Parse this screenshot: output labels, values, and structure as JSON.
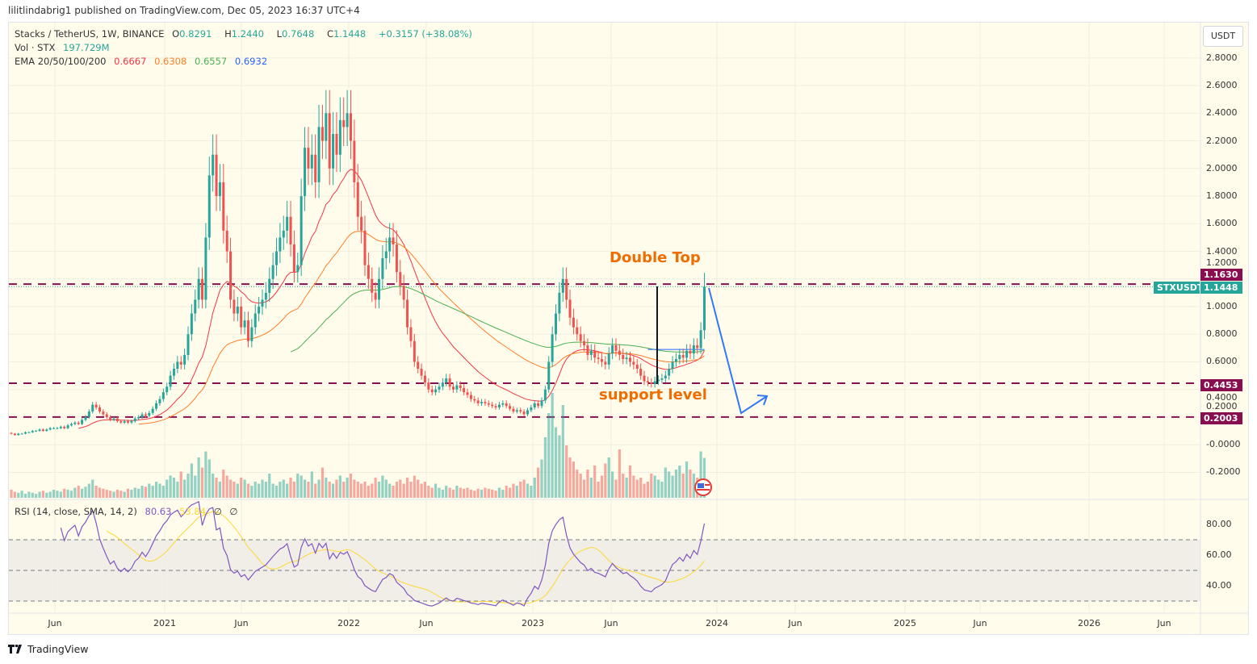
{
  "published": "lilitlindabrig1 published on TradingView.com, Dec 05, 2023 16:37 UTC+4",
  "legend": {
    "symbol": "Stacks / TetherUS, 1W, BINANCE",
    "open_label": "O",
    "open": "0.8291",
    "high_label": "H",
    "high": "1.2440",
    "low_label": "L",
    "low": "0.7648",
    "close_label": "C",
    "close": "1.1448",
    "change": "+0.3157 (+38.08%)",
    "vol_label": "Vol · STX",
    "vol": "197.729M",
    "ema_label": "EMA 20/50/100/200",
    "ema_values": [
      "0.6667",
      "0.6308",
      "0.6557",
      "0.6932"
    ]
  },
  "currency_button": "USDT",
  "price_axis": [
    "2.8000",
    "2.6000",
    "2.4000",
    "2.2000",
    "2.0000",
    "1.8000",
    "1.6000",
    "1.4000",
    "1.2000",
    "1.0000",
    "0.8000",
    "0.6000",
    "0.4000",
    "0.2000",
    "-0.0000",
    "-0.2000"
  ],
  "price_tags": {
    "double_top": "1.1630",
    "symbol": "STXUSDT",
    "last": "1.1448",
    "support": "0.4453",
    "lower": "0.2003"
  },
  "annotations": {
    "double_top": "Double Top",
    "support": "support level"
  },
  "rsi": {
    "label": "RSI (14, close, SMA, 14, 2)",
    "value": "80.63",
    "sma": "53.84",
    "extra1": "∅",
    "extra2": "∅",
    "axis": [
      "80.00",
      "60.00",
      "40.00"
    ]
  },
  "time_axis": [
    "Jun",
    "2021",
    "Jun",
    "2022",
    "Jun",
    "2023",
    "Jun",
    "2024",
    "Jun",
    "2025",
    "Jun",
    "2026",
    "Jun"
  ],
  "footer": "TradingView",
  "colors": {
    "up": "#26a69a",
    "down": "#ef5350",
    "ema20": "#f23645",
    "ema50": "#ff7f27",
    "ema100": "#4caf50",
    "ema200": "#2962ff",
    "levels": "#880e4f",
    "annotation": "#ef6c00",
    "arrow": "#3179f5",
    "rsi": "#7e57c2",
    "rsi_sma": "#fdd835"
  },
  "chart_data": {
    "type": "candlestick",
    "interval": "1W",
    "first_week": "2020-03",
    "close": [
      0.08,
      0.07,
      0.08,
      0.08,
      0.09,
      0.09,
      0.1,
      0.1,
      0.11,
      0.1,
      0.11,
      0.12,
      0.12,
      0.12,
      0.13,
      0.12,
      0.14,
      0.15,
      0.16,
      0.15,
      0.18,
      0.2,
      0.24,
      0.29,
      0.27,
      0.24,
      0.22,
      0.2,
      0.18,
      0.19,
      0.17,
      0.16,
      0.17,
      0.16,
      0.17,
      0.19,
      0.2,
      0.22,
      0.21,
      0.23,
      0.26,
      0.3,
      0.33,
      0.38,
      0.42,
      0.5,
      0.55,
      0.6,
      0.58,
      0.65,
      0.8,
      0.95,
      1.05,
      1.2,
      1.05,
      1.5,
      1.95,
      2.1,
      1.8,
      1.9,
      1.55,
      1.4,
      1.05,
      0.95,
      1.0,
      0.85,
      0.9,
      0.75,
      0.85,
      0.95,
      1.0,
      1.05,
      1.1,
      1.2,
      1.3,
      1.4,
      1.5,
      1.55,
      1.65,
      1.45,
      1.25,
      1.3,
      1.8,
      2.15,
      2.0,
      2.1,
      1.9,
      2.3,
      2.2,
      2.4,
      2.0,
      2.25,
      2.1,
      2.35,
      2.3,
      2.4,
      2.2,
      1.9,
      1.65,
      1.55,
      1.3,
      1.2,
      1.1,
      1.05,
      1.2,
      1.35,
      1.4,
      1.5,
      1.45,
      1.25,
      1.15,
      1.05,
      0.85,
      0.75,
      0.6,
      0.55,
      0.5,
      0.45,
      0.4,
      0.38,
      0.4,
      0.42,
      0.45,
      0.48,
      0.42,
      0.4,
      0.43,
      0.41,
      0.38,
      0.36,
      0.33,
      0.32,
      0.3,
      0.31,
      0.3,
      0.29,
      0.28,
      0.27,
      0.29,
      0.3,
      0.28,
      0.26,
      0.24,
      0.25,
      0.24,
      0.22,
      0.25,
      0.27,
      0.3,
      0.28,
      0.32,
      0.4,
      0.6,
      0.8,
      0.95,
      1.1,
      1.2,
      1.05,
      0.92,
      0.85,
      0.8,
      0.75,
      0.72,
      0.65,
      0.68,
      0.63,
      0.62,
      0.6,
      0.58,
      0.66,
      0.72,
      0.68,
      0.65,
      0.62,
      0.63,
      0.6,
      0.58,
      0.55,
      0.5,
      0.46,
      0.45,
      0.44,
      0.46,
      0.47,
      0.48,
      0.5,
      0.55,
      0.6,
      0.62,
      0.65,
      0.63,
      0.68,
      0.66,
      0.72,
      0.7,
      0.8291,
      1.1448
    ],
    "volume_millions": [
      40,
      30,
      25,
      35,
      20,
      30,
      25,
      20,
      30,
      35,
      25,
      30,
      40,
      35,
      30,
      45,
      40,
      35,
      50,
      60,
      45,
      55,
      70,
      90,
      60,
      50,
      45,
      40,
      35,
      30,
      40,
      35,
      30,
      45,
      40,
      50,
      45,
      60,
      55,
      70,
      60,
      80,
      70,
      60,
      90,
      110,
      100,
      80,
      130,
      90,
      120,
      170,
      110,
      200,
      150,
      230,
      190,
      120,
      100,
      80,
      140,
      110,
      90,
      80,
      70,
      100,
      90,
      70,
      60,
      80,
      70,
      90,
      80,
      120,
      70,
      60,
      80,
      90,
      70,
      100,
      80,
      120,
      110,
      90,
      80,
      130,
      70,
      90,
      150,
      100,
      80,
      70,
      90,
      110,
      80,
      100,
      120,
      90,
      80,
      70,
      80,
      60,
      70,
      100,
      80,
      110,
      90,
      70,
      60,
      80,
      90,
      70,
      100,
      80,
      110,
      90,
      70,
      80,
      60,
      50,
      70,
      50,
      40,
      60,
      50,
      40,
      60,
      50,
      45,
      50,
      40,
      35,
      45,
      40,
      50,
      45,
      40,
      35,
      50,
      40,
      60,
      50,
      70,
      60,
      80,
      90,
      70,
      60,
      100,
      150,
      190,
      300,
      420,
      520,
      350,
      310,
      460,
      260,
      200,
      180,
      140,
      120,
      90,
      140,
      100,
      160,
      80,
      110,
      170,
      200,
      130,
      90,
      240,
      120,
      100,
      160,
      110,
      90,
      100,
      70,
      80,
      120,
      110,
      90,
      80,
      150,
      130,
      110,
      140,
      160,
      120,
      180,
      140,
      120,
      100,
      230,
      197.729
    ],
    "last_bar": {
      "open": 0.8291,
      "high": 1.244,
      "low": 0.7648,
      "close": 1.1448
    },
    "ema_lengths": [
      20,
      50,
      100,
      200
    ],
    "levels": [
      1.163,
      0.4453,
      0.2003
    ],
    "price_range": [
      -0.3,
      2.95
    ],
    "rsi_levels": [
      70,
      50,
      30
    ],
    "grid": true
  }
}
